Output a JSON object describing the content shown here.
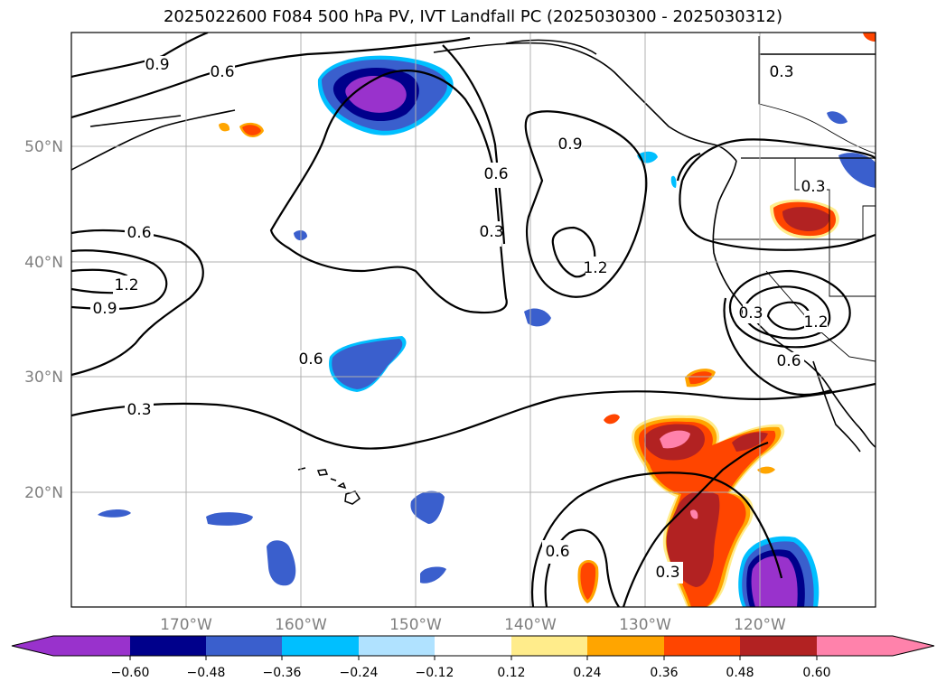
{
  "title": "2025022600 F084 500 hPa PV, IVT Landfall PC (2025030300 - 2025030312)",
  "lat_ticks": [
    "50°N",
    "40°N",
    "30°N",
    "20°N"
  ],
  "lon_ticks": [
    "170°W",
    "160°W",
    "150°W",
    "140°W",
    "130°W",
    "120°W"
  ],
  "contour_levels": [
    "0.3",
    "0.6",
    "0.9",
    "1.2"
  ],
  "colorbar": {
    "tick_labels": [
      "−0.60",
      "−0.48",
      "−0.36",
      "−0.24",
      "−0.12",
      "0.12",
      "0.24",
      "0.36",
      "0.48",
      "0.60"
    ],
    "colors": [
      "#9932cc",
      "#00008b",
      "#3a5fcd",
      "#00bfff",
      "#b0e2ff",
      "#ffffff",
      "#ffec8b",
      "#ffa500",
      "#ff4500",
      "#b22222",
      "#ff82ab"
    ]
  }
}
